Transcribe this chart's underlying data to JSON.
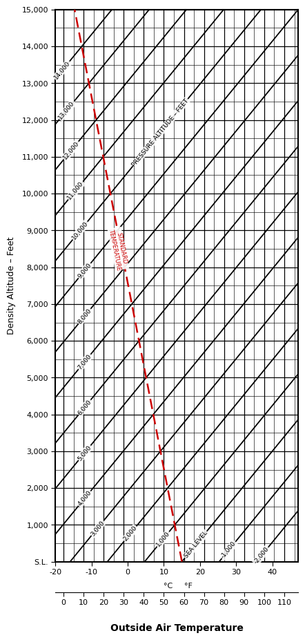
{
  "ylabel": "Density Altitude – Feet",
  "xlabel": "Outside Air Temperature",
  "y_ticks": [
    0,
    1000,
    2000,
    3000,
    4000,
    5000,
    6000,
    7000,
    8000,
    9000,
    10000,
    11000,
    12000,
    13000,
    14000,
    15000
  ],
  "y_tick_labels": [
    "S.L.",
    "1,000",
    "2,000",
    "3,000",
    "4,000",
    "5,000",
    "6,000",
    "7,000",
    "8,000",
    "9,000",
    "10,000",
    "11,000",
    "12,000",
    "13,000",
    "14,000",
    "15,000"
  ],
  "x_min_C": -20,
  "x_max_C": 47.2,
  "xC_ticks": [
    -20,
    -10,
    0,
    10,
    20,
    30,
    40
  ],
  "xF_ticks": [
    0,
    10,
    20,
    30,
    40,
    50,
    60,
    70,
    80,
    90,
    100,
    110
  ],
  "pressure_altitudes": [
    -2000,
    -1000,
    0,
    1000,
    2000,
    3000,
    4000,
    5000,
    6000,
    7000,
    8000,
    9000,
    10000,
    11000,
    12000,
    13000,
    14000
  ],
  "pressure_alt_label": "PRESSURE ALTITUDE – FEET",
  "std_temp_label": "STANDARD\nTEMPERATURE",
  "background_color": "#ffffff",
  "dashed_color": "#cc0000",
  "lapse_rate": 1.98,
  "std_temp_sea_level": 15.0,
  "da_slope": 120.0,
  "y_min": 0,
  "y_max": 15000
}
